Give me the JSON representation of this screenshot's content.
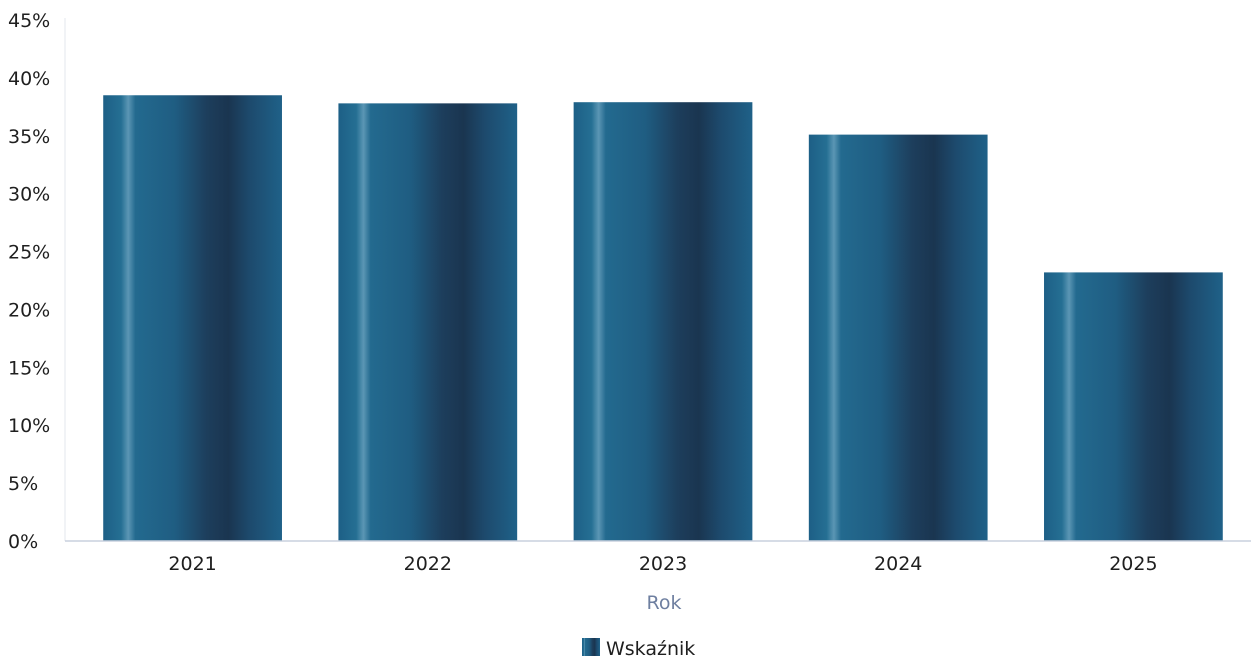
{
  "chart_data": {
    "type": "bar",
    "categories": [
      "2021",
      "2022",
      "2023",
      "2024",
      "2025"
    ],
    "series": [
      {
        "name": "Wskaźnik",
        "values": [
          38.5,
          37.8,
          37.9,
          35.1,
          23.2
        ]
      }
    ],
    "xlabel": "Rok",
    "ylabel": "",
    "ylim": [
      0,
      45
    ],
    "yticks": [
      "0%",
      "5%",
      "10%",
      "15%",
      "20%",
      "25%",
      "30%",
      "35%",
      "40%",
      "45%"
    ],
    "grid": false,
    "legend": "bottom-center",
    "colors": {
      "bar": "#1d5f86",
      "bar_dark": "#1a3a55",
      "bar_light": "#5b96b4",
      "axis": "#c8d0dd",
      "axis_title": "#6e7fa0"
    }
  }
}
